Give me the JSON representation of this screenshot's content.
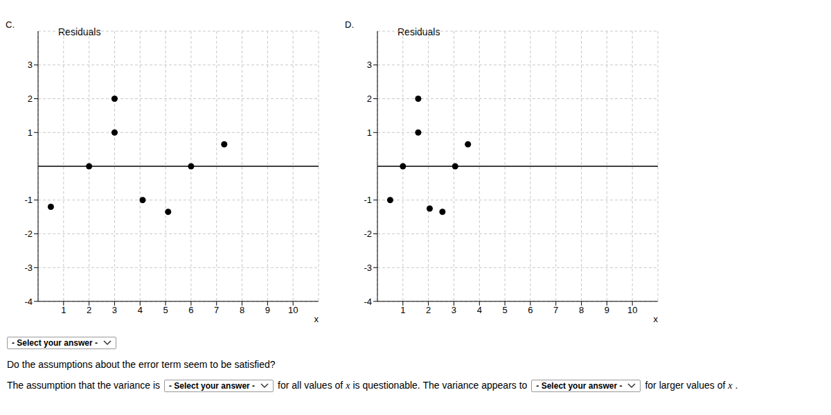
{
  "chart_data": [
    {
      "type": "scatter",
      "title": "C.",
      "y_label": "Residuals",
      "x_label": "x",
      "x": [
        0.5,
        2,
        3,
        3,
        4.1,
        5.1,
        6,
        7.3
      ],
      "values": [
        -1.2,
        0,
        2,
        1,
        -1,
        -1.35,
        0,
        0.65
      ],
      "xlim": [
        0,
        11
      ],
      "ylim": [
        -4,
        4
      ],
      "xticks": [
        1,
        2,
        3,
        4,
        5,
        6,
        7,
        8,
        9,
        10
      ],
      "yticks": [
        -4,
        -3,
        -2,
        -1,
        1,
        2,
        3
      ],
      "grid": true,
      "color": "#000000",
      "marker": "circle"
    },
    {
      "type": "scatter",
      "title": "D.",
      "y_label": "Residuals",
      "x_label": "x",
      "x": [
        0.5,
        1,
        1.6,
        1.6,
        2.05,
        2.55,
        3.05,
        3.55
      ],
      "values": [
        -1,
        0,
        2,
        1,
        -1.25,
        -1.35,
        0,
        0.65
      ],
      "xlim": [
        0,
        11
      ],
      "ylim": [
        -4,
        4
      ],
      "xticks": [
        1,
        2,
        3,
        4,
        5,
        6,
        7,
        8,
        9,
        10
      ],
      "yticks": [
        -4,
        -3,
        -2,
        -1,
        1,
        2,
        3
      ],
      "grid": true,
      "color": "#000000",
      "marker": "circle"
    }
  ],
  "form": {
    "first_select": "- Select your answer -",
    "question": "Do the assumptions about the error term seem to be satisfied?",
    "sentence": [
      {
        "text": "The assumption that the variance is"
      },
      {
        "select": "- Select your answer -"
      },
      {
        "text": "for all values of"
      },
      {
        "var": "x"
      },
      {
        "text": "is questionable. The variance appears to"
      },
      {
        "select": "- Select your answer -"
      },
      {
        "text": "for larger values of"
      },
      {
        "var": "x"
      },
      {
        "text": "."
      }
    ]
  }
}
